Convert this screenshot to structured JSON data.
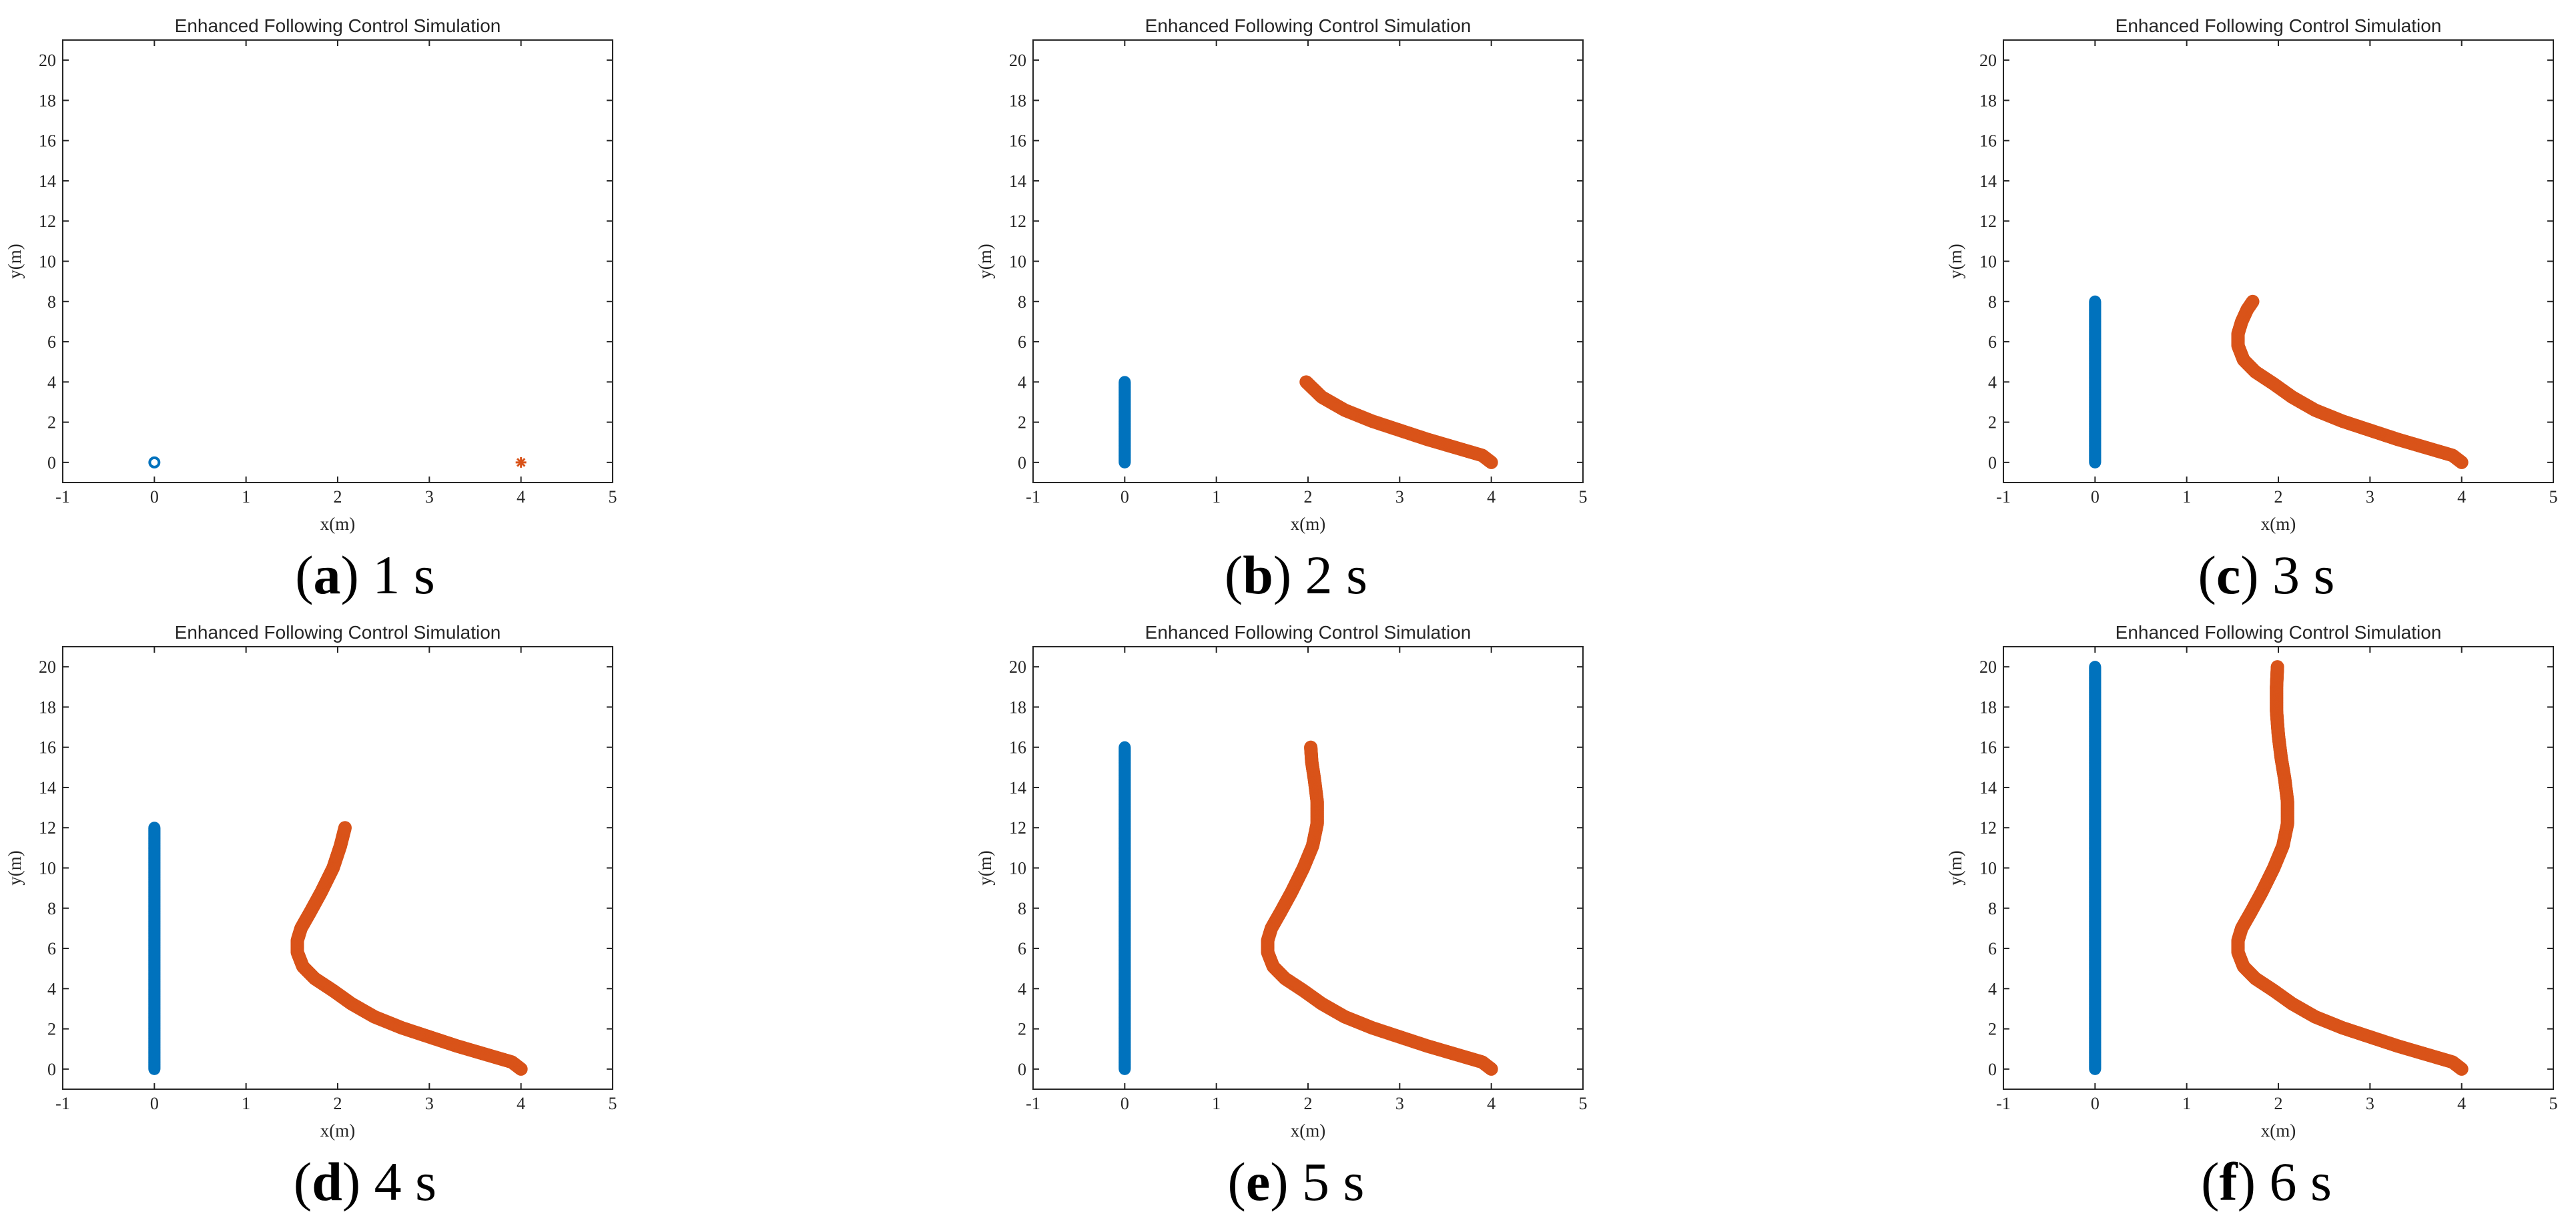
{
  "figure": {
    "colors": {
      "leader": "#0072BD",
      "follower": "#D95319",
      "axes": "#262626"
    }
  },
  "chart_data": [
    {
      "type": "scatter",
      "title": "Enhanced Following Control Simulation",
      "xlabel": "x(m)",
      "ylabel": "y(m)",
      "xlim": [
        -1,
        5
      ],
      "ylim": [
        -1,
        21
      ],
      "xticks": [
        -1,
        0,
        1,
        2,
        3,
        4,
        5
      ],
      "yticks": [
        0,
        2,
        4,
        6,
        8,
        10,
        12,
        14,
        16,
        18,
        20
      ],
      "caption": {
        "letter": "a",
        "text": " 1 s"
      },
      "series": [
        {
          "marker": "o",
          "color": "#0072BD",
          "x": [
            0
          ],
          "y": [
            0
          ]
        },
        {
          "marker": "*",
          "color": "#D95319",
          "x": [
            4
          ],
          "y": [
            0
          ]
        }
      ]
    },
    {
      "type": "scatter",
      "title": "Enhanced Following Control Simulation",
      "xlabel": "x(m)",
      "ylabel": "y(m)",
      "xlim": [
        -1,
        5
      ],
      "ylim": [
        -1,
        21
      ],
      "xticks": [
        -1,
        0,
        1,
        2,
        3,
        4,
        5
      ],
      "yticks": [
        0,
        2,
        4,
        6,
        8,
        10,
        12,
        14,
        16,
        18,
        20
      ],
      "caption": {
        "letter": "b",
        "text": " 2 s"
      },
      "series": [
        {
          "marker": "o",
          "color": "#0072BD",
          "x": [
            0,
            0,
            0,
            0,
            0,
            0,
            0,
            0,
            0
          ],
          "y": [
            0,
            0.5,
            1,
            1.5,
            2,
            2.5,
            3,
            3.5,
            4
          ]
        },
        {
          "marker": "*",
          "color": "#D95319",
          "x": [
            4.0,
            3.9,
            3.6,
            3.3,
            3.0,
            2.7,
            2.4,
            2.15,
            1.98
          ],
          "y": [
            0,
            0.35,
            0.75,
            1.15,
            1.6,
            2.05,
            2.6,
            3.25,
            4.0
          ]
        }
      ]
    },
    {
      "type": "scatter",
      "title": "Enhanced Following Control Simulation",
      "xlabel": "x(m)",
      "ylabel": "y(m)",
      "xlim": [
        -1,
        5
      ],
      "ylim": [
        -1,
        21
      ],
      "xticks": [
        -1,
        0,
        1,
        2,
        3,
        4,
        5
      ],
      "yticks": [
        0,
        2,
        4,
        6,
        8,
        10,
        12,
        14,
        16,
        18,
        20
      ],
      "caption": {
        "letter": "c",
        "text": " 3 s"
      },
      "series": [
        {
          "marker": "o",
          "color": "#0072BD",
          "x": [
            0,
            0,
            0,
            0,
            0,
            0,
            0,
            0,
            0,
            0,
            0,
            0,
            0,
            0,
            0,
            0,
            0
          ],
          "y": [
            0,
            0.5,
            1,
            1.5,
            2,
            2.5,
            3,
            3.5,
            4,
            4.5,
            5,
            5.5,
            6,
            6.5,
            7,
            7.5,
            8
          ]
        },
        {
          "marker": "*",
          "color": "#D95319",
          "x": [
            4.0,
            3.9,
            3.6,
            3.3,
            3.0,
            2.7,
            2.4,
            2.15,
            1.95,
            1.75,
            1.62,
            1.56,
            1.56,
            1.6,
            1.66,
            1.72
          ],
          "y": [
            0,
            0.35,
            0.75,
            1.15,
            1.6,
            2.05,
            2.6,
            3.25,
            3.9,
            4.5,
            5.1,
            5.8,
            6.4,
            7.0,
            7.6,
            8.0
          ]
        }
      ]
    },
    {
      "type": "scatter",
      "title": "Enhanced Following Control Simulation",
      "xlabel": "x(m)",
      "ylabel": "y(m)",
      "xlim": [
        -1,
        5
      ],
      "ylim": [
        -1,
        21
      ],
      "xticks": [
        -1,
        0,
        1,
        2,
        3,
        4,
        5
      ],
      "yticks": [
        0,
        2,
        4,
        6,
        8,
        10,
        12,
        14,
        16,
        18,
        20
      ],
      "caption": {
        "letter": "d",
        "text": " 4 s"
      },
      "series": [
        {
          "marker": "o",
          "color": "#0072BD",
          "x": [
            0,
            0,
            0,
            0,
            0,
            0,
            0,
            0,
            0,
            0,
            0,
            0,
            0,
            0,
            0,
            0,
            0,
            0,
            0,
            0,
            0,
            0,
            0,
            0,
            0
          ],
          "y": [
            0,
            0.5,
            1,
            1.5,
            2,
            2.5,
            3,
            3.5,
            4,
            4.5,
            5,
            5.5,
            6,
            6.5,
            7,
            7.5,
            8,
            8.5,
            9,
            9.5,
            10,
            10.5,
            11,
            11.5,
            12
          ]
        },
        {
          "marker": "*",
          "color": "#D95319",
          "x": [
            4.0,
            3.9,
            3.6,
            3.3,
            3.0,
            2.7,
            2.4,
            2.15,
            1.95,
            1.75,
            1.62,
            1.56,
            1.56,
            1.6,
            1.7,
            1.82,
            1.95,
            2.03,
            2.08
          ],
          "y": [
            0,
            0.35,
            0.75,
            1.15,
            1.6,
            2.05,
            2.6,
            3.25,
            3.9,
            4.5,
            5.1,
            5.8,
            6.4,
            7.0,
            7.8,
            8.8,
            10.0,
            11.1,
            12.0
          ]
        }
      ]
    },
    {
      "type": "scatter",
      "title": "Enhanced Following Control Simulation",
      "xlabel": "x(m)",
      "ylabel": "y(m)",
      "xlim": [
        -1,
        5
      ],
      "ylim": [
        -1,
        21
      ],
      "xticks": [
        -1,
        0,
        1,
        2,
        3,
        4,
        5
      ],
      "yticks": [
        0,
        2,
        4,
        6,
        8,
        10,
        12,
        14,
        16,
        18,
        20
      ],
      "caption": {
        "letter": "e",
        "text": " 5 s"
      },
      "series": [
        {
          "marker": "o",
          "color": "#0072BD",
          "x": [
            0,
            0,
            0,
            0,
            0,
            0,
            0,
            0,
            0,
            0,
            0,
            0,
            0,
            0,
            0,
            0,
            0,
            0,
            0,
            0,
            0,
            0,
            0,
            0,
            0,
            0,
            0,
            0,
            0,
            0,
            0,
            0,
            0
          ],
          "y": [
            0,
            0.5,
            1,
            1.5,
            2,
            2.5,
            3,
            3.5,
            4,
            4.5,
            5,
            5.5,
            6,
            6.5,
            7,
            7.5,
            8,
            8.5,
            9,
            9.5,
            10,
            10.5,
            11,
            11.5,
            12,
            12.5,
            13,
            13.5,
            14,
            14.5,
            15,
            15.5,
            16
          ]
        },
        {
          "marker": "*",
          "color": "#D95319",
          "x": [
            4.0,
            3.9,
            3.6,
            3.3,
            3.0,
            2.7,
            2.4,
            2.15,
            1.95,
            1.75,
            1.62,
            1.56,
            1.56,
            1.6,
            1.7,
            1.82,
            1.95,
            2.05,
            2.1,
            2.1,
            2.07,
            2.04,
            2.03
          ],
          "y": [
            0,
            0.35,
            0.75,
            1.15,
            1.6,
            2.05,
            2.6,
            3.25,
            3.9,
            4.5,
            5.1,
            5.8,
            6.4,
            7.0,
            7.8,
            8.8,
            10.0,
            11.1,
            12.2,
            13.3,
            14.4,
            15.3,
            16.0
          ]
        }
      ]
    },
    {
      "type": "scatter",
      "title": "Enhanced Following Control Simulation",
      "xlabel": "x(m)",
      "ylabel": "y(m)",
      "xlim": [
        -1,
        5
      ],
      "ylim": [
        -1,
        21
      ],
      "xticks": [
        -1,
        0,
        1,
        2,
        3,
        4,
        5
      ],
      "yticks": [
        0,
        2,
        4,
        6,
        8,
        10,
        12,
        14,
        16,
        18,
        20
      ],
      "caption": {
        "letter": "f",
        "text": " 6 s"
      },
      "series": [
        {
          "marker": "o",
          "color": "#0072BD",
          "x": [
            0,
            0,
            0,
            0,
            0,
            0,
            0,
            0,
            0,
            0,
            0,
            0,
            0,
            0,
            0,
            0,
            0,
            0,
            0,
            0,
            0,
            0,
            0,
            0,
            0,
            0,
            0,
            0,
            0,
            0,
            0,
            0,
            0,
            0,
            0,
            0,
            0,
            0,
            0,
            0,
            0
          ],
          "y": [
            0,
            0.5,
            1,
            1.5,
            2,
            2.5,
            3,
            3.5,
            4,
            4.5,
            5,
            5.5,
            6,
            6.5,
            7,
            7.5,
            8,
            8.5,
            9,
            9.5,
            10,
            10.5,
            11,
            11.5,
            12,
            12.5,
            13,
            13.5,
            14,
            14.5,
            15,
            15.5,
            16,
            16.5,
            17,
            17.5,
            18,
            18.5,
            19,
            19.5,
            20
          ]
        },
        {
          "marker": "*",
          "color": "#D95319",
          "x": [
            4.0,
            3.9,
            3.6,
            3.3,
            3.0,
            2.7,
            2.4,
            2.15,
            1.95,
            1.75,
            1.62,
            1.56,
            1.56,
            1.6,
            1.7,
            1.82,
            1.95,
            2.05,
            2.1,
            2.1,
            2.07,
            2.03,
            2.0,
            1.98,
            1.98,
            1.99
          ],
          "y": [
            0,
            0.35,
            0.75,
            1.15,
            1.6,
            2.05,
            2.6,
            3.25,
            3.9,
            4.5,
            5.1,
            5.8,
            6.4,
            7.0,
            7.8,
            8.8,
            10.0,
            11.1,
            12.2,
            13.3,
            14.4,
            15.5,
            16.6,
            17.8,
            19.0,
            20.0
          ]
        }
      ]
    }
  ]
}
